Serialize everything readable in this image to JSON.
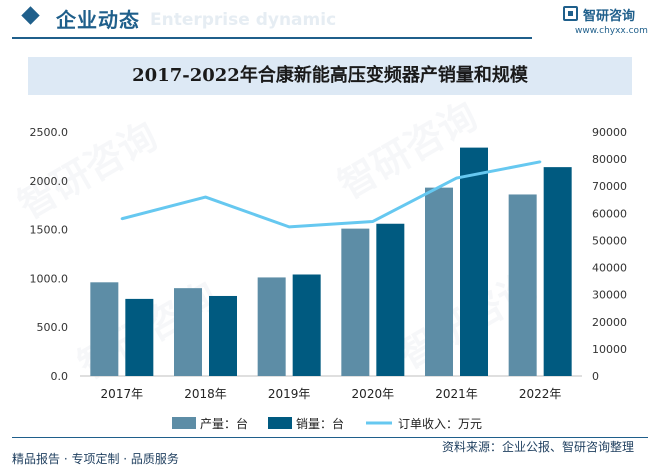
{
  "header": {
    "title": "企业动态",
    "subtitle_en": "Enterprise dynamic",
    "logo_name": "智研咨询",
    "logo_url": "www.chyxx.com"
  },
  "watermark_text": "智研咨询",
  "footer": {
    "left": "精品报告 · 专项定制 · 品质服务",
    "right": "资料来源：企业公报、智研咨询整理"
  },
  "colors": {
    "brand": "#1f5f8b",
    "production": "#5d8da6",
    "sales": "#005a80",
    "orders": "#66c8f0",
    "title_band": "#dde9f5"
  },
  "chart_data": {
    "type": "bar",
    "title": "2017-2022年合康新能高压变频器产销量和规模",
    "categories": [
      "2017年",
      "2018年",
      "2019年",
      "2020年",
      "2021年",
      "2022年"
    ],
    "series": [
      {
        "name": "产量：台",
        "type": "bar",
        "axis": "left",
        "values": [
          960,
          900,
          1010,
          1510,
          1930,
          1860
        ]
      },
      {
        "name": "销量：台",
        "type": "bar",
        "axis": "left",
        "values": [
          790,
          820,
          1040,
          1560,
          2340,
          2140
        ]
      },
      {
        "name": "订单收入：万元",
        "type": "line",
        "axis": "right",
        "values": [
          58000,
          66000,
          55000,
          57000,
          73000,
          79000
        ]
      }
    ],
    "left_axis": {
      "min": 0,
      "max": 2500,
      "step": 500,
      "tick_labels": [
        "0.0",
        "500.0",
        "1000.0",
        "1500.0",
        "2000.0",
        "2500.0"
      ]
    },
    "right_axis": {
      "min": 0,
      "max": 90000,
      "step": 10000,
      "tick_labels": [
        "0",
        "10000",
        "20000",
        "30000",
        "40000",
        "50000",
        "60000",
        "70000",
        "80000",
        "90000"
      ]
    },
    "legend_position": "bottom-center",
    "grid": false
  }
}
